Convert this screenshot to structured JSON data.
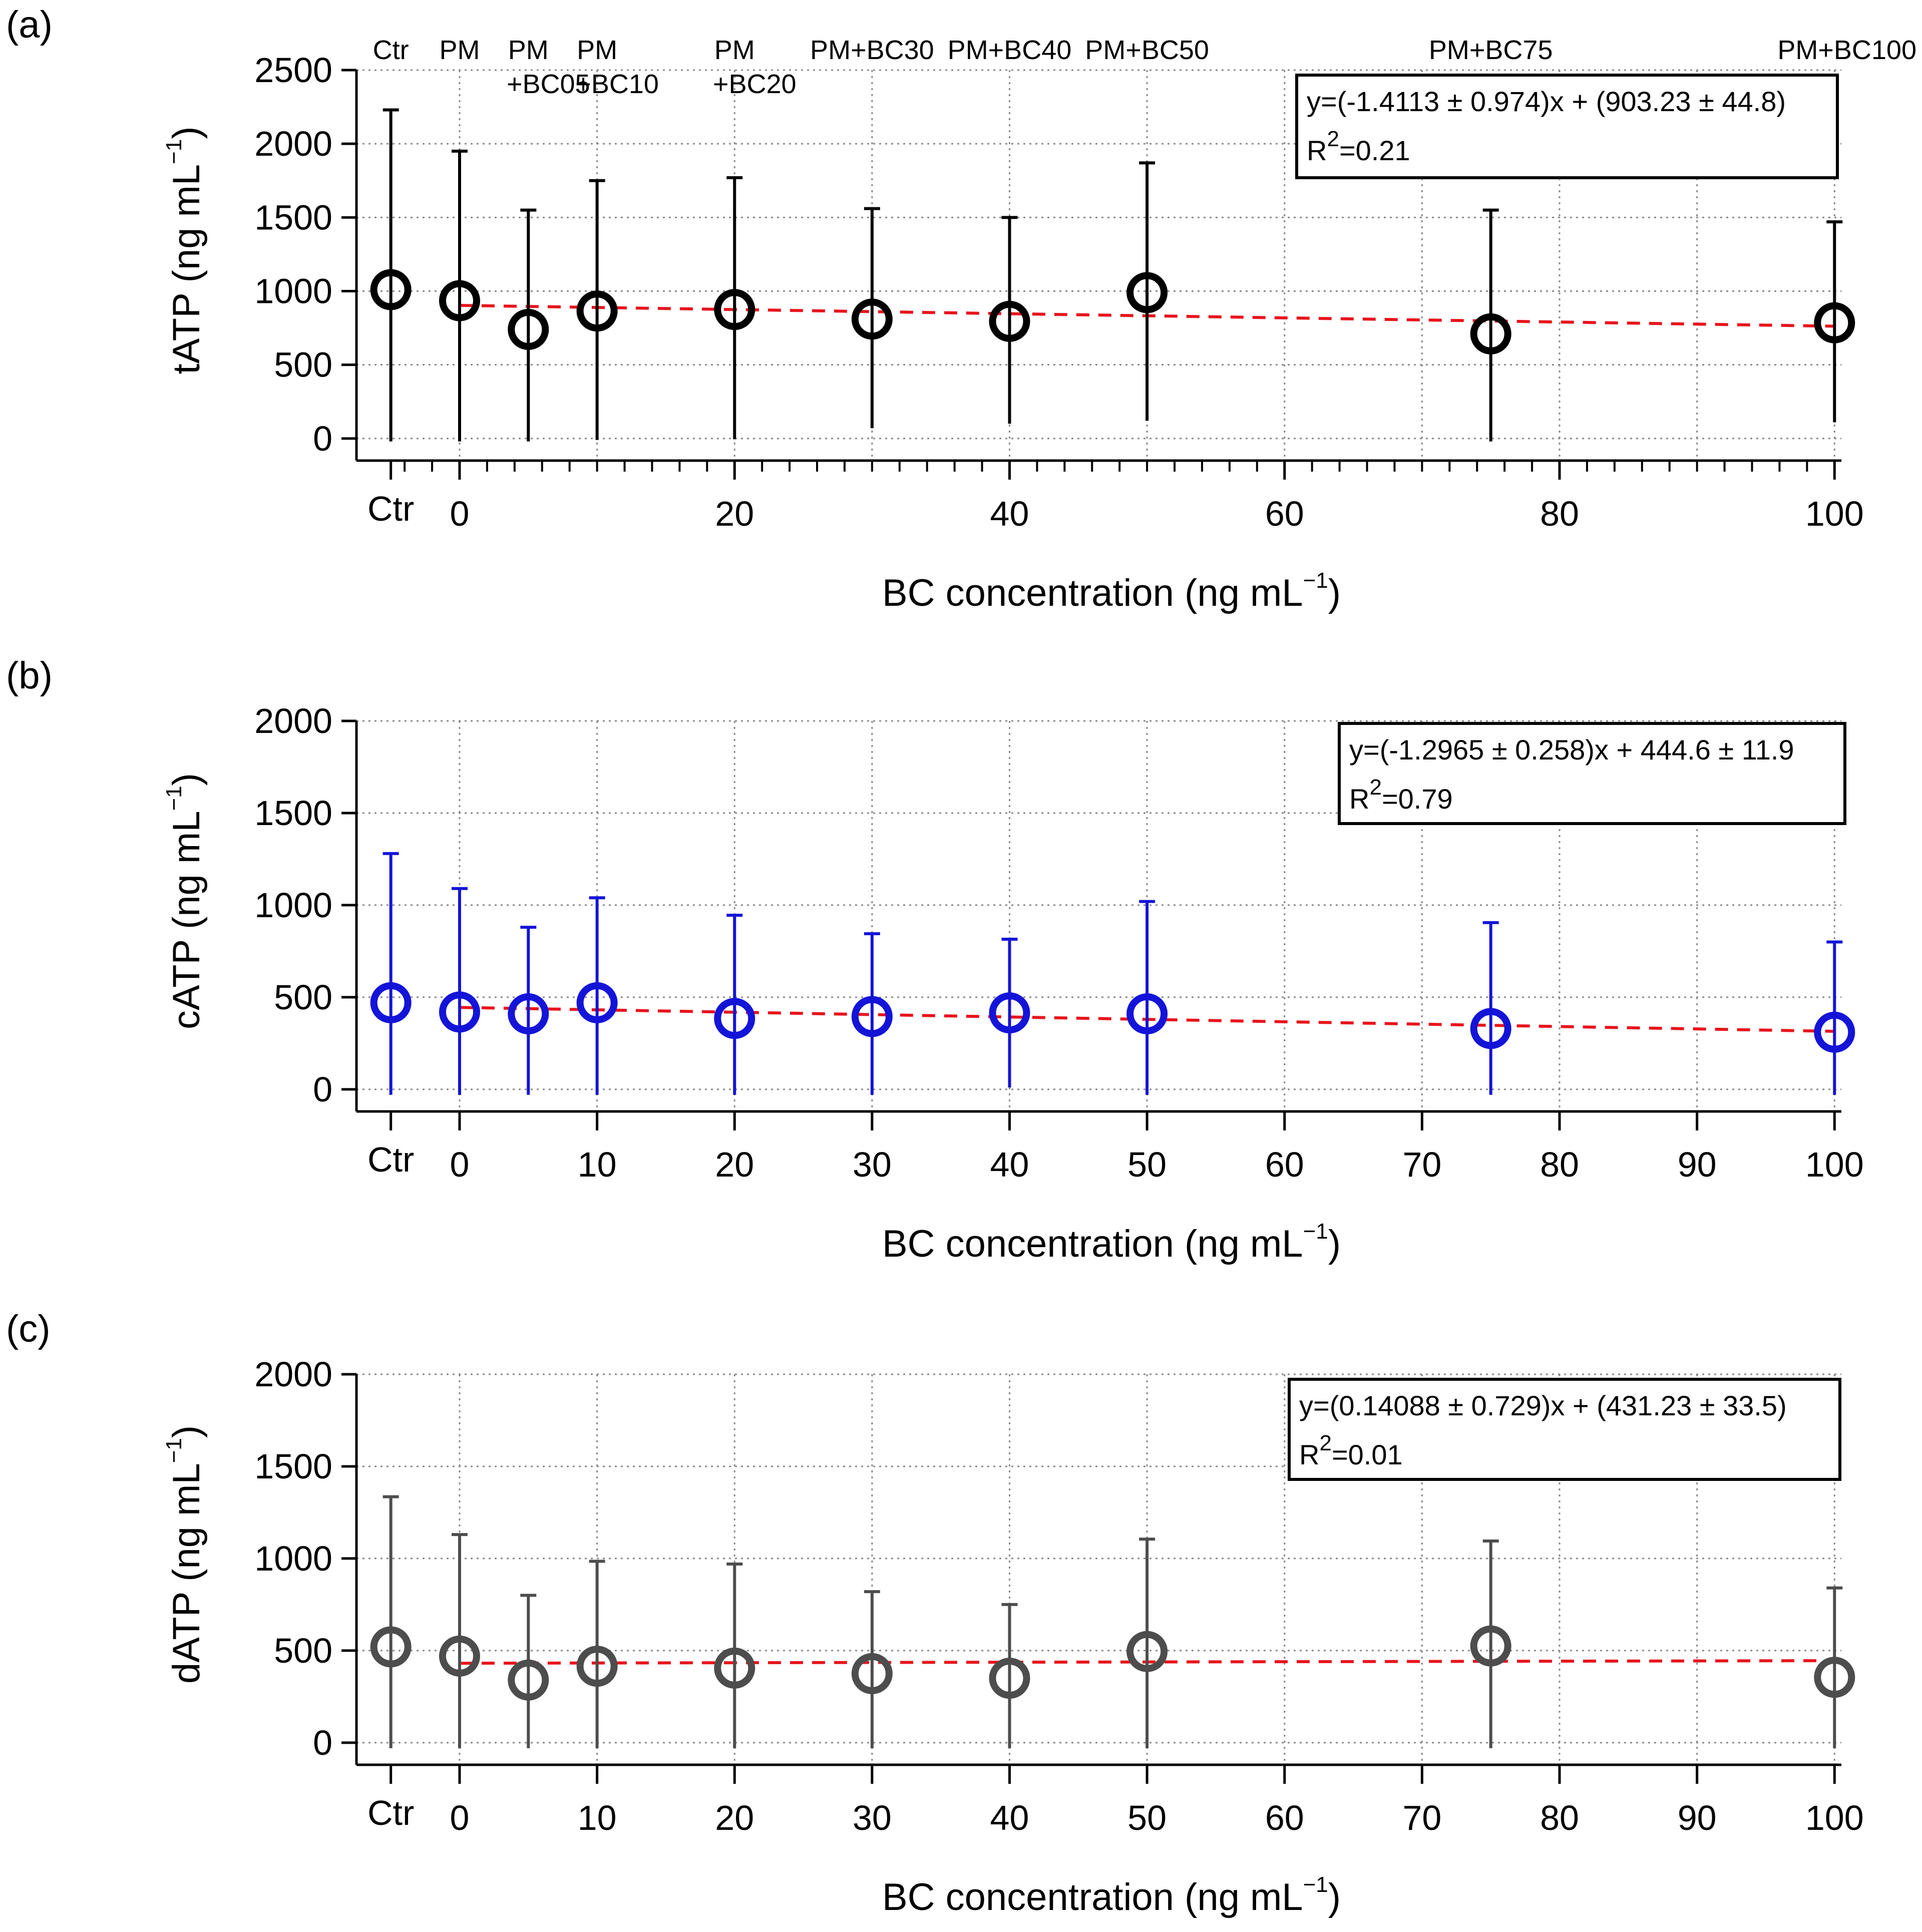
{
  "chart_data": [
    {
      "panel": "(a)",
      "type": "scatter",
      "xlabel": "BC concentration (ng mL",
      "xlabel_sup": "−1",
      "xlabel_close": ")",
      "ylabel": "tATP (ng mL",
      "ylabel_sup": "−1",
      "ylabel_close": ")",
      "ylim": [
        0,
        2500
      ],
      "yticks": [
        0,
        500,
        1000,
        1500,
        2000,
        2500
      ],
      "xlim": [
        -5,
        100
      ],
      "xticks": [
        0,
        20,
        40,
        60,
        80,
        100
      ],
      "x_minor_step": 2,
      "ctr_label": "Ctr",
      "grid": true,
      "marker_color": "#000000",
      "fit_color": "#e8141c",
      "group_labels": [
        {
          "x": -5,
          "lines": [
            "Ctr"
          ]
        },
        {
          "x": 0,
          "lines": [
            "PM"
          ]
        },
        {
          "x": 5,
          "lines": [
            "PM",
            "+BC05"
          ]
        },
        {
          "x": 10,
          "lines": [
            "PM",
            "+BC10"
          ]
        },
        {
          "x": 20,
          "lines": [
            "PM",
            "+BC20"
          ]
        },
        {
          "x": 30,
          "lines": [
            "PM+BC30"
          ]
        },
        {
          "x": 40,
          "lines": [
            "PM+BC40"
          ]
        },
        {
          "x": 50,
          "lines": [
            "PM+BC50"
          ]
        },
        {
          "x": 75,
          "lines": [
            "PM+BC75"
          ]
        },
        {
          "x": 100,
          "lines": [
            "PM+BC100"
          ]
        }
      ],
      "points": [
        {
          "x": -5,
          "y": 1010,
          "err_low": -20,
          "err_high": 2230
        },
        {
          "x": 0,
          "y": 935,
          "err_low": -20,
          "err_high": 1950
        },
        {
          "x": 5,
          "y": 740,
          "err_low": -20,
          "err_high": 1550
        },
        {
          "x": 10,
          "y": 865,
          "err_low": -10,
          "err_high": 1750
        },
        {
          "x": 20,
          "y": 875,
          "err_low": -5,
          "err_high": 1770
        },
        {
          "x": 30,
          "y": 810,
          "err_low": 70,
          "err_high": 1560
        },
        {
          "x": 40,
          "y": 795,
          "err_low": 100,
          "err_high": 1500
        },
        {
          "x": 50,
          "y": 990,
          "err_low": 120,
          "err_high": 1870
        },
        {
          "x": 75,
          "y": 710,
          "err_low": -20,
          "err_high": 1550
        },
        {
          "x": 100,
          "y": 785,
          "err_low": 110,
          "err_high": 1470
        }
      ],
      "fit": {
        "x_start": 0,
        "x_end": 100,
        "slope": -1.4113,
        "intercept": 903.23
      },
      "fit_text_line1": "y=(-1.4113 ± 0.974)x + (903.23 ± 44.8)",
      "fit_text_r": "R",
      "fit_text_r_sup": "2",
      "fit_text_r_val": "=0.21"
    },
    {
      "panel": "(b)",
      "type": "scatter",
      "xlabel": "BC concentration (ng mL",
      "xlabel_sup": "−1",
      "xlabel_close": ")",
      "ylabel": "cATP (ng mL",
      "ylabel_sup": "−1",
      "ylabel_close": ")",
      "ylim": [
        0,
        2000
      ],
      "yticks": [
        0,
        500,
        1000,
        1500,
        2000
      ],
      "xlim": [
        -5,
        100
      ],
      "xticks": [
        0,
        10,
        20,
        30,
        40,
        50,
        60,
        70,
        80,
        90,
        100
      ],
      "x_minor_step": 0,
      "ctr_label": "Ctr",
      "grid": true,
      "marker_color": "#1414d8",
      "fit_color": "#e8141c",
      "group_labels": [],
      "points": [
        {
          "x": -5,
          "y": 470,
          "err_low": -30,
          "err_high": 1280
        },
        {
          "x": 0,
          "y": 420,
          "err_low": -30,
          "err_high": 1090
        },
        {
          "x": 5,
          "y": 410,
          "err_low": -30,
          "err_high": 880
        },
        {
          "x": 10,
          "y": 470,
          "err_low": -30,
          "err_high": 1040
        },
        {
          "x": 20,
          "y": 385,
          "err_low": -30,
          "err_high": 945
        },
        {
          "x": 30,
          "y": 395,
          "err_low": -30,
          "err_high": 845
        },
        {
          "x": 40,
          "y": 415,
          "err_low": 10,
          "err_high": 815
        },
        {
          "x": 50,
          "y": 410,
          "err_low": -30,
          "err_high": 1020
        },
        {
          "x": 75,
          "y": 330,
          "err_low": -30,
          "err_high": 905
        },
        {
          "x": 100,
          "y": 310,
          "err_low": -30,
          "err_high": 800
        }
      ],
      "fit": {
        "x_start": 0,
        "x_end": 100,
        "slope": -1.2965,
        "intercept": 444.6
      },
      "fit_text_line1": "y=(-1.2965 ± 0.258)x + 444.6 ± 11.9",
      "fit_text_r": "R",
      "fit_text_r_sup": "2",
      "fit_text_r_val": "=0.79"
    },
    {
      "panel": "(c)",
      "type": "scatter",
      "xlabel": "BC concentration (ng mL",
      "xlabel_sup": "−1",
      "xlabel_close": ")",
      "ylabel": "dATP (ng mL",
      "ylabel_sup": "−1",
      "ylabel_close": ")",
      "ylim": [
        0,
        2000
      ],
      "yticks": [
        0,
        500,
        1000,
        1500,
        2000
      ],
      "xlim": [
        -5,
        100
      ],
      "xticks": [
        0,
        10,
        20,
        30,
        40,
        50,
        60,
        70,
        80,
        90,
        100
      ],
      "x_minor_step": 0,
      "ctr_label": "Ctr",
      "grid": true,
      "marker_color": "#4d4d4d",
      "fit_color": "#e8141c",
      "group_labels": [],
      "points": [
        {
          "x": -5,
          "y": 520,
          "err_low": -30,
          "err_high": 1335
        },
        {
          "x": 0,
          "y": 470,
          "err_low": -30,
          "err_high": 1130
        },
        {
          "x": 5,
          "y": 340,
          "err_low": -30,
          "err_high": 800
        },
        {
          "x": 10,
          "y": 415,
          "err_low": -30,
          "err_high": 985
        },
        {
          "x": 20,
          "y": 405,
          "err_low": -30,
          "err_high": 970
        },
        {
          "x": 30,
          "y": 375,
          "err_low": -30,
          "err_high": 820
        },
        {
          "x": 40,
          "y": 350,
          "err_low": -30,
          "err_high": 750
        },
        {
          "x": 50,
          "y": 495,
          "err_low": -30,
          "err_high": 1105
        },
        {
          "x": 75,
          "y": 525,
          "err_low": -30,
          "err_high": 1095
        },
        {
          "x": 100,
          "y": 355,
          "err_low": -30,
          "err_high": 840
        }
      ],
      "fit": {
        "x_start": 0,
        "x_end": 100,
        "slope": 0.14088,
        "intercept": 431.23
      },
      "fit_text_line1": "y=(0.14088 ± 0.729)x + (431.23 ± 33.5)",
      "fit_text_r": "R",
      "fit_text_r_sup": "2",
      "fit_text_r_val": "=0.01"
    }
  ]
}
